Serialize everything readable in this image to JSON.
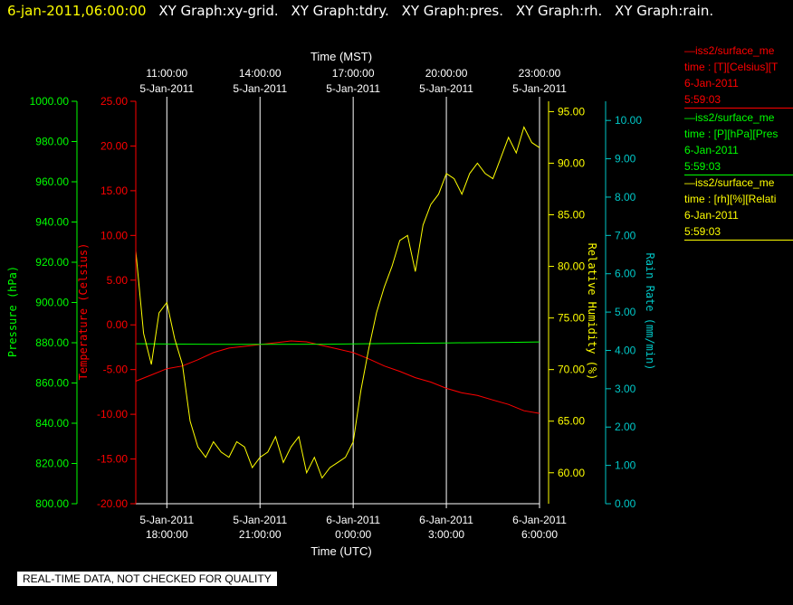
{
  "header": {
    "time": "6-jan-2011,06:00:00",
    "titles": [
      "XY Graph:xy-grid.",
      "XY Graph:tdry.",
      "XY Graph:pres.",
      "XY Graph:rh.",
      "XY Graph:rain."
    ]
  },
  "colors": {
    "background": "#000000",
    "grid": "#ffffff",
    "temperature": "#ff0000",
    "pressure": "#00ff00",
    "humidity": "#ffff00",
    "rain": "#00c8c8"
  },
  "legend": [
    {
      "series": "temperature",
      "color": "#ff0000",
      "lines": [
        "—iss2/surface_me",
        "time : [T][Celsius][T",
        "6-Jan-2011",
        "5:59:03"
      ]
    },
    {
      "series": "pressure",
      "color": "#00ff00",
      "lines": [
        "—iss2/surface_me",
        "time : [P][hPa][Pres",
        "6-Jan-2011",
        "5:59:03"
      ]
    },
    {
      "series": "humidity",
      "color": "#ffff00",
      "lines": [
        "—iss2/surface_me",
        "time : [rh][%][Relati",
        "6-Jan-2011",
        "5:59:03"
      ]
    }
  ],
  "footer": {
    "warning": "REAL-TIME DATA, NOT CHECKED FOR QUALITY"
  },
  "chart_data": {
    "type": "line",
    "grid": true,
    "legend_placement": "right",
    "x_bottom": {
      "label": "Time (UTC)",
      "range": [
        "5-Jan-2011 17:00:00",
        "6-Jan-2011 06:00:00"
      ],
      "ticks": [
        {
          "at": "5-Jan-2011 18:00:00",
          "line1": "5-Jan-2011",
          "line2": "18:00:00"
        },
        {
          "at": "5-Jan-2011 21:00:00",
          "line1": "5-Jan-2011",
          "line2": "21:00:00"
        },
        {
          "at": "6-Jan-2011 00:00:00",
          "line1": "6-Jan-2011",
          "line2": "0:00:00"
        },
        {
          "at": "6-Jan-2011 03:00:00",
          "line1": "6-Jan-2011",
          "line2": "3:00:00"
        },
        {
          "at": "6-Jan-2011 06:00:00",
          "line1": "6-Jan-2011",
          "line2": "6:00:00"
        }
      ]
    },
    "x_top": {
      "label": "Time (MST)",
      "ticks": [
        {
          "at": "5-Jan-2011 18:00:00",
          "line1": "11:00:00",
          "line2": "5-Jan-2011"
        },
        {
          "at": "5-Jan-2011 21:00:00",
          "line1": "14:00:00",
          "line2": "5-Jan-2011"
        },
        {
          "at": "6-Jan-2011 00:00:00",
          "line1": "17:00:00",
          "line2": "5-Jan-2011"
        },
        {
          "at": "6-Jan-2011 03:00:00",
          "line1": "20:00:00",
          "line2": "5-Jan-2011"
        },
        {
          "at": "6-Jan-2011 06:00:00",
          "line1": "23:00:00",
          "line2": "5-Jan-2011"
        }
      ]
    },
    "y_axes": [
      {
        "key": "pressure",
        "label": "Pressure (hPa)",
        "color": "#00ff00",
        "min": 800,
        "max": 1000,
        "step": 20,
        "decimals": 2
      },
      {
        "key": "temperature",
        "label": "Temperature (Celsius)",
        "color": "#ff0000",
        "min": -20,
        "max": 25,
        "step": 5,
        "decimals": 2
      },
      {
        "key": "humidity",
        "label": "Relative Humidity (%)",
        "color": "#ffff00",
        "min": 57,
        "max": 96,
        "step": 5,
        "first_tick": 60,
        "decimals": 2
      },
      {
        "key": "rain",
        "label": "Rain Rate (mm/min)",
        "color": "#00c8c8",
        "min": 0,
        "max": 10.5,
        "step": 1,
        "decimals": 2
      }
    ],
    "series": [
      {
        "key": "temperature",
        "axis": "temperature",
        "color": "#ff0000",
        "x": [
          "5-Jan-2011 17:00:00",
          "5-Jan-2011 17:30:00",
          "5-Jan-2011 18:00:00",
          "5-Jan-2011 18:30:00",
          "5-Jan-2011 19:00:00",
          "5-Jan-2011 19:30:00",
          "5-Jan-2011 20:00:00",
          "5-Jan-2011 20:30:00",
          "5-Jan-2011 21:00:00",
          "5-Jan-2011 21:30:00",
          "5-Jan-2011 22:00:00",
          "5-Jan-2011 22:30:00",
          "5-Jan-2011 23:00:00",
          "5-Jan-2011 23:30:00",
          "6-Jan-2011 00:00:00",
          "6-Jan-2011 00:30:00",
          "6-Jan-2011 01:00:00",
          "6-Jan-2011 01:30:00",
          "6-Jan-2011 02:00:00",
          "6-Jan-2011 02:30:00",
          "6-Jan-2011 03:00:00",
          "6-Jan-2011 03:30:00",
          "6-Jan-2011 04:00:00",
          "6-Jan-2011 04:30:00",
          "6-Jan-2011 05:00:00",
          "6-Jan-2011 05:30:00",
          "6-Jan-2011 06:00:00"
        ],
        "values": [
          -6.3,
          -5.6,
          -4.9,
          -4.6,
          -3.9,
          -3.1,
          -2.6,
          -2.4,
          -2.2,
          -2.0,
          -1.8,
          -1.9,
          -2.3,
          -2.7,
          -3.1,
          -3.8,
          -4.6,
          -5.2,
          -5.9,
          -6.4,
          -7.1,
          -7.6,
          -7.9,
          -8.4,
          -8.9,
          -9.6,
          -9.9
        ]
      },
      {
        "key": "pressure",
        "axis": "pressure",
        "color": "#00ff00",
        "x": [
          "5-Jan-2011 17:00:00",
          "5-Jan-2011 19:00:00",
          "5-Jan-2011 21:00:00",
          "5-Jan-2011 23:00:00",
          "6-Jan-2011 01:00:00",
          "6-Jan-2011 03:00:00",
          "6-Jan-2011 05:00:00",
          "6-Jan-2011 06:00:00"
        ],
        "values": [
          879.5,
          879.3,
          879.2,
          879.3,
          879.6,
          879.9,
          880.2,
          880.4
        ]
      },
      {
        "key": "humidity",
        "axis": "humidity",
        "color": "#ffff00",
        "x": [
          "5-Jan-2011 17:00:00",
          "5-Jan-2011 17:15:00",
          "5-Jan-2011 17:30:00",
          "5-Jan-2011 17:45:00",
          "5-Jan-2011 18:00:00",
          "5-Jan-2011 18:15:00",
          "5-Jan-2011 18:30:00",
          "5-Jan-2011 18:45:00",
          "5-Jan-2011 19:00:00",
          "5-Jan-2011 19:15:00",
          "5-Jan-2011 19:30:00",
          "5-Jan-2011 19:45:00",
          "5-Jan-2011 20:00:00",
          "5-Jan-2011 20:15:00",
          "5-Jan-2011 20:30:00",
          "5-Jan-2011 20:45:00",
          "5-Jan-2011 21:00:00",
          "5-Jan-2011 21:15:00",
          "5-Jan-2011 21:30:00",
          "5-Jan-2011 21:45:00",
          "5-Jan-2011 22:00:00",
          "5-Jan-2011 22:15:00",
          "5-Jan-2011 22:30:00",
          "5-Jan-2011 22:45:00",
          "5-Jan-2011 23:00:00",
          "5-Jan-2011 23:15:00",
          "5-Jan-2011 23:30:00",
          "5-Jan-2011 23:45:00",
          "6-Jan-2011 00:00:00",
          "6-Jan-2011 00:15:00",
          "6-Jan-2011 00:30:00",
          "6-Jan-2011 00:45:00",
          "6-Jan-2011 01:00:00",
          "6-Jan-2011 01:15:00",
          "6-Jan-2011 01:30:00",
          "6-Jan-2011 01:45:00",
          "6-Jan-2011 02:00:00",
          "6-Jan-2011 02:15:00",
          "6-Jan-2011 02:30:00",
          "6-Jan-2011 02:45:00",
          "6-Jan-2011 03:00:00",
          "6-Jan-2011 03:15:00",
          "6-Jan-2011 03:30:00",
          "6-Jan-2011 03:45:00",
          "6-Jan-2011 04:00:00",
          "6-Jan-2011 04:15:00",
          "6-Jan-2011 04:30:00",
          "6-Jan-2011 04:45:00",
          "6-Jan-2011 05:00:00",
          "6-Jan-2011 05:15:00",
          "6-Jan-2011 05:30:00",
          "6-Jan-2011 05:45:00",
          "6-Jan-2011 06:00:00"
        ],
        "values": [
          81.5,
          73.5,
          70.5,
          75.5,
          76.5,
          73.0,
          70.5,
          65.0,
          62.5,
          61.5,
          63.0,
          62.0,
          61.5,
          63.0,
          62.5,
          60.5,
          61.5,
          62.0,
          63.5,
          61.0,
          62.5,
          63.5,
          60.0,
          61.5,
          59.5,
          60.5,
          61.0,
          61.5,
          63.0,
          68.0,
          72.0,
          75.5,
          78.0,
          80.0,
          82.5,
          83.0,
          79.5,
          84.0,
          86.0,
          87.0,
          89.0,
          88.5,
          87.0,
          89.0,
          90.0,
          89.0,
          88.5,
          90.5,
          92.5,
          91.0,
          93.5,
          92.0,
          91.5
        ]
      },
      {
        "key": "rain",
        "axis": "rain",
        "color": "#00c8c8",
        "x": [
          "5-Jan-2011 17:00:00",
          "6-Jan-2011 06:00:00"
        ],
        "values": [
          0.0,
          0.0
        ]
      }
    ]
  }
}
